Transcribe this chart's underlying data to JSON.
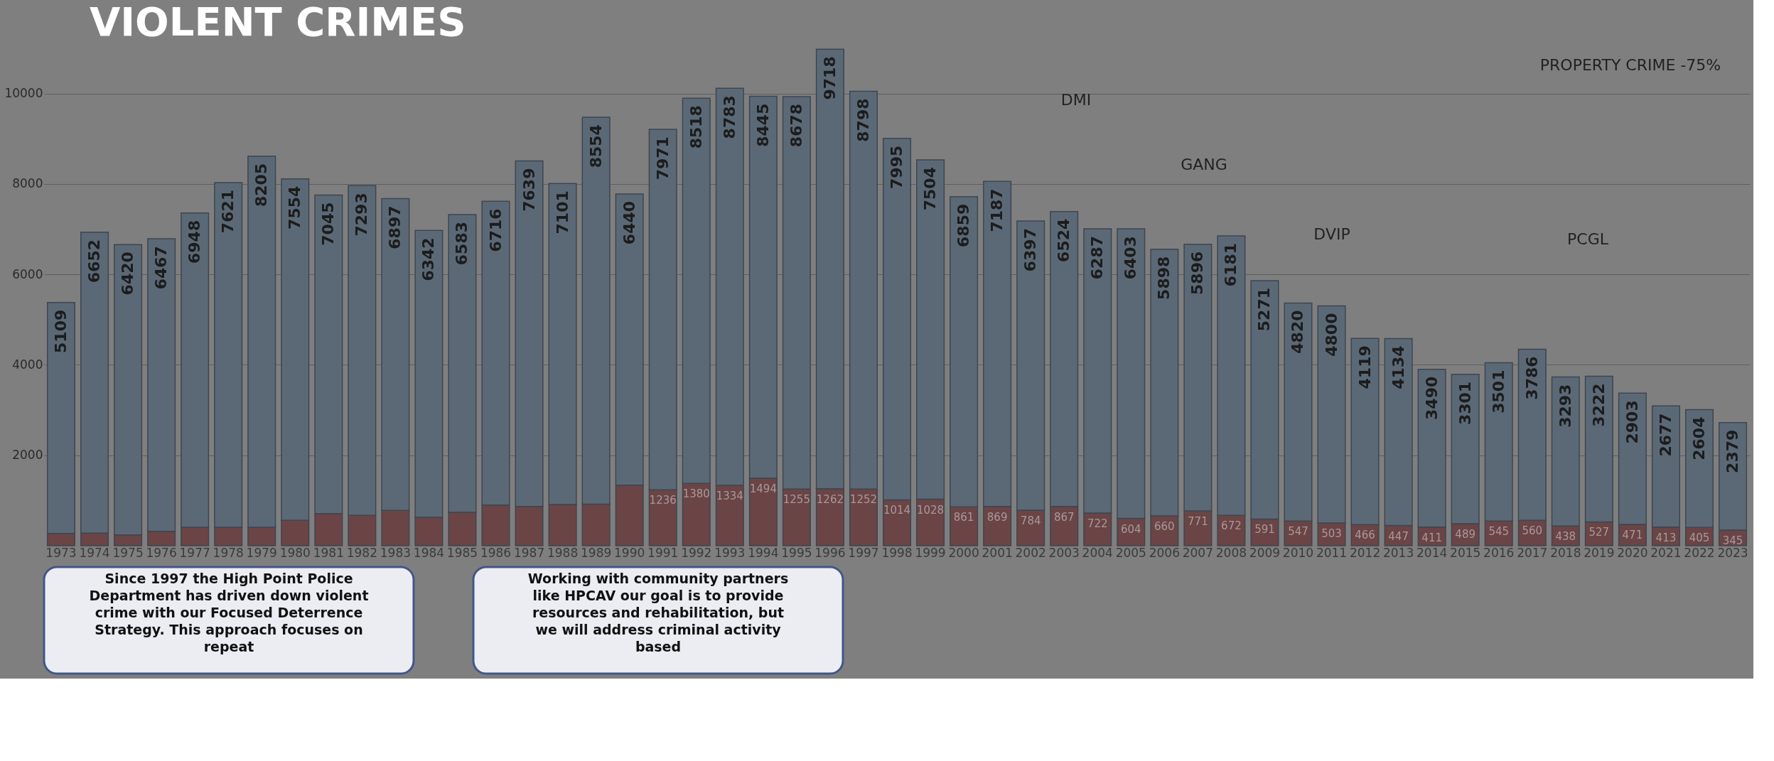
{
  "chart_data": {
    "type": "bar",
    "title": "VIOLENT CRIMES",
    "stacked": true,
    "grid": "y",
    "categories": [
      "1973",
      "1974",
      "1975",
      "1976",
      "1977",
      "1978",
      "1979",
      "1980",
      "1981",
      "1982",
      "1983",
      "1984",
      "1985",
      "1986",
      "1987",
      "1988",
      "1989",
      "1990",
      "1991",
      "1992",
      "1993",
      "1994",
      "1995",
      "1996",
      "1997",
      "1998",
      "1999",
      "2000",
      "2001",
      "2002",
      "2003",
      "2004",
      "2005",
      "2006",
      "2007",
      "2008",
      "2009",
      "2010",
      "2011",
      "2012",
      "2013",
      "2014",
      "2015",
      "2016",
      "2017",
      "2018",
      "2019",
      "2020",
      "2021",
      "2022",
      "2023"
    ],
    "series": [
      {
        "color": "#6b4446",
        "values": [
          270,
          280,
          240,
          320,
          410,
          410,
          410,
          560,
          710,
          670,
          780,
          630,
          740,
          900,
          870,
          910,
          920,
          1340,
          1236,
          1380,
          1334,
          1494,
          1255,
          1262,
          1252,
          1014,
          1028,
          861,
          869,
          784,
          867,
          722,
          604,
          660,
          771,
          672,
          591,
          547,
          503,
          466,
          447,
          411,
          489,
          545,
          560,
          438,
          527,
          471,
          413,
          405,
          345
        ],
        "value_labels": [
          null,
          null,
          null,
          null,
          null,
          null,
          null,
          null,
          null,
          null,
          null,
          null,
          null,
          null,
          null,
          null,
          null,
          null,
          "1236",
          "1380",
          "1334",
          "1494",
          "1255",
          "1262",
          "1252",
          "1014",
          "1028",
          "861",
          "869",
          "784",
          "867",
          "722",
          "604",
          "660",
          "771",
          "672",
          "591",
          "547",
          "503",
          "466",
          "447",
          "411",
          "489",
          "545",
          "560",
          "438",
          "527",
          "471",
          "413",
          "405",
          "345"
        ]
      },
      {
        "color": "#5b6977",
        "values": [
          5109,
          6652,
          6420,
          6467,
          6948,
          7621,
          8205,
          7554,
          7045,
          7293,
          6897,
          6342,
          6583,
          6716,
          7639,
          7101,
          8554,
          6440,
          7971,
          8518,
          8783,
          8445,
          8678,
          9718,
          8798,
          7995,
          7504,
          6859,
          7187,
          6397,
          6524,
          6287,
          6403,
          5898,
          5896,
          6181,
          5271,
          4820,
          4800,
          4119,
          4134,
          3490,
          3301,
          3501,
          3786,
          3293,
          3222,
          2903,
          2677,
          2604,
          2379
        ],
        "value_labels": [
          "5109",
          "6652",
          "6420",
          "6467",
          "6948",
          "7621",
          "8205",
          "7554",
          "7045",
          "7293",
          "6897",
          "6342",
          "6583",
          "6716",
          "7639",
          "7101",
          "8554",
          "6440",
          "7971",
          "8518",
          "8783",
          "8445",
          "8678",
          "9718",
          "8798",
          "7995",
          "7504",
          "6859",
          "7187",
          "6397",
          "6524",
          "6287",
          "6403",
          "5898",
          "5896",
          "6181",
          "5271",
          "4820",
          "4800",
          "4119",
          "4134",
          "3490",
          "3301",
          "3501",
          "3786",
          "3293",
          "3222",
          "2903",
          "2677",
          "2604",
          "2379"
        ]
      }
    ],
    "ylim": [
      0,
      11000
    ],
    "yticks": [
      2000,
      4000,
      6000,
      8000,
      10000
    ],
    "annotations": [
      "DMI",
      "GANG",
      "DVIP",
      "PCGL",
      "PROPERTY CRIME -75%",
      "Since 1997 the High Point Police Department has driven down violent crime with our Focused Deterrence Strategy. This approach focuses on repeat",
      "Working with community partners like HPCAV our goal is to provide resources and rehabilitation, but we will address criminal activity based"
    ]
  }
}
